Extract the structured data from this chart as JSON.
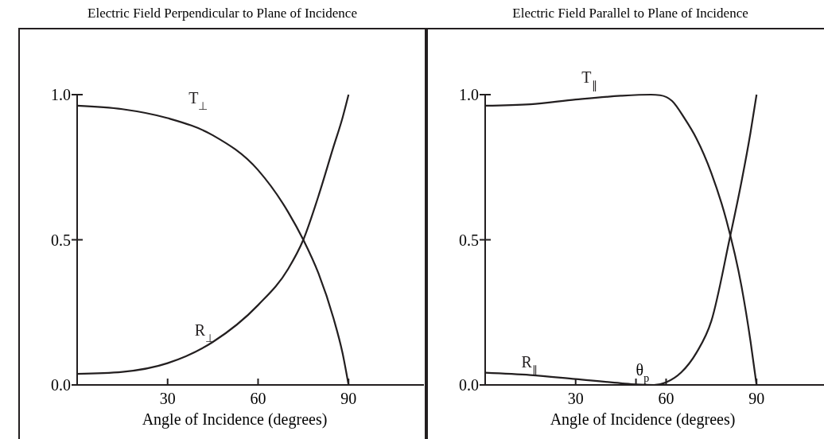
{
  "chart_data": [
    {
      "type": "line",
      "title": "Electric Field Perpendicular to Plane of Incidence",
      "xlabel": "Angle of Incidence (degrees)",
      "xlim": [
        0,
        115
      ],
      "xticks": [
        30,
        60,
        90
      ],
      "ylim": [
        0,
        1
      ],
      "yticks": [
        {
          "value": 0,
          "label": "0.0"
        },
        {
          "value": 0.5,
          "label": "0.5"
        },
        {
          "value": 1,
          "label": "1.0"
        }
      ],
      "grid": false,
      "series": [
        {
          "name": "T$_{⊥}$",
          "color": "#231f20",
          "x": [
            0,
            15,
            30,
            45,
            60,
            70,
            75,
            80,
            85,
            88,
            90
          ],
          "values": [
            0.962,
            0.95,
            0.919,
            0.86,
            0.74,
            0.595,
            0.5,
            0.385,
            0.23,
            0.11,
            0
          ]
        },
        {
          "name": "R$_{⊥}$",
          "color": "#231f20",
          "x": [
            0,
            15,
            30,
            45,
            60,
            70,
            75,
            80,
            85,
            88,
            90
          ],
          "values": [
            0.038,
            0.045,
            0.075,
            0.148,
            0.275,
            0.4,
            0.5,
            0.65,
            0.82,
            0.92,
            1
          ]
        }
      ]
    },
    {
      "type": "line",
      "title": "Electric Field Parallel to Plane of Incidence",
      "xlabel": "Angle of Incidence (degrees)",
      "xlim": [
        0,
        115
      ],
      "xticks": [
        30,
        {
          "value": 50,
          "label": null
        },
        60,
        90
      ],
      "ylim": [
        0,
        1
      ],
      "yticks": [
        {
          "value": 0,
          "label": "0.0"
        },
        {
          "value": 0.5,
          "label": "0.5"
        },
        {
          "value": 1,
          "label": "1.0"
        }
      ],
      "grid": false,
      "annotations": [
        {
          "text": "θ$_{p}$",
          "x": 50,
          "y": 0
        }
      ],
      "series": [
        {
          "name": "T$_{∥}$",
          "color": "#231f20",
          "x": [
            0,
            15,
            30,
            45,
            55,
            58,
            62,
            66,
            70,
            75,
            80,
            85,
            88,
            90
          ],
          "values": [
            0.962,
            0.967,
            0.983,
            0.996,
            1,
            0.998,
            0.978,
            0.92,
            0.85,
            0.73,
            0.567,
            0.34,
            0.15,
            0
          ]
        },
        {
          "name": "R$_{∥}$",
          "color": "#231f20",
          "x": [
            0,
            15,
            30,
            45,
            50,
            56,
            60,
            65,
            70,
            75,
            81,
            85,
            88,
            90
          ],
          "values": [
            0.042,
            0.034,
            0.02,
            0.006,
            0.002,
            0,
            0.009,
            0.043,
            0.11,
            0.22,
            0.5,
            0.7,
            0.87,
            1
          ]
        }
      ]
    }
  ]
}
